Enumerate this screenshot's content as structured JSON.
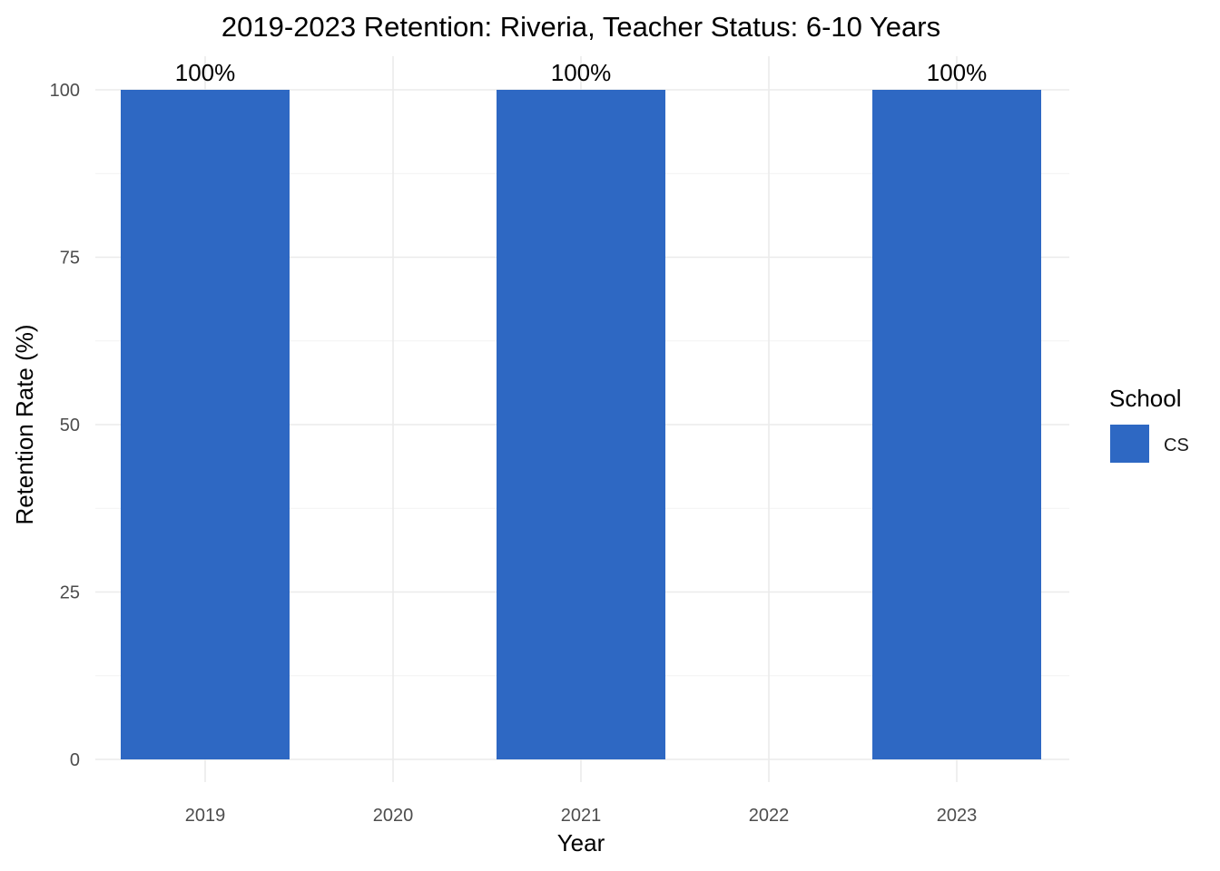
{
  "chart_data": {
    "type": "bar",
    "title": "2019-2023 Retention: Riveria, Teacher Status: 6-10 Years",
    "xlabel": "Year",
    "ylabel": "Retention Rate (%)",
    "categories": [
      "2019",
      "2020",
      "2021",
      "2022",
      "2023"
    ],
    "series": [
      {
        "name": "CS",
        "color": "#2e68c3",
        "values": [
          100,
          null,
          100,
          null,
          100
        ],
        "labels": [
          "100%",
          "",
          "100%",
          "",
          "100%"
        ]
      }
    ],
    "ylim": [
      0,
      100
    ],
    "yticks": [
      0,
      25,
      50,
      75,
      100
    ],
    "grid": true,
    "legend": {
      "title": "School",
      "position": "right"
    }
  }
}
